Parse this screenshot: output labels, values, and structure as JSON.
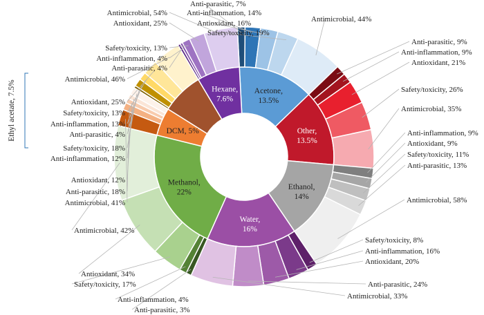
{
  "chart_data": {
    "type": "sunburst",
    "inner_ring": [
      {
        "name": "Acetone",
        "value": "13.5%",
        "weight": 13.5,
        "color": "#5b9bd5",
        "text_color": "#222222"
      },
      {
        "name": "Other",
        "value": "13.5%",
        "weight": 13.5,
        "color": "#c0192b",
        "text_color": "#ffffff"
      },
      {
        "name": "Ethanol",
        "value": "14%",
        "weight": 14,
        "color": "#a5a5a5",
        "text_color": "#222222"
      },
      {
        "name": "Water",
        "value": "16%",
        "weight": 16,
        "color": "#9b4fa5",
        "text_color": "#ffffff"
      },
      {
        "name": "Methanol",
        "value": "22%",
        "weight": 22,
        "color": "#70ad47",
        "text_color": "#222222"
      },
      {
        "name": "DCM",
        "value": "5%",
        "weight": 5,
        "color": "#ed7d31",
        "text_color": "#222222"
      },
      {
        "name": "Ethyl acetate",
        "value": "7.5%",
        "weight": 7.5,
        "color": "#a0522d",
        "text_color": "#222222"
      },
      {
        "name": "Hexane",
        "value": "7.6%",
        "weight": 7.6,
        "color": "#7030a0",
        "text_color": "#ffffff"
      }
    ],
    "outer_ring": {
      "Acetone": [
        {
          "label": "Anti-parasitic, 7%",
          "value": 7,
          "color": "#1f4e79"
        },
        {
          "label": "Anti-inflammation, 14%",
          "value": 14,
          "color": "#2e75b6"
        },
        {
          "label": "Antioxidant, 16%",
          "value": 16,
          "color": "#9dc3e6"
        },
        {
          "label": "Safety/toxicity, 19%",
          "value": 19,
          "color": "#bdd7ee"
        },
        {
          "label": "Antimicrobial, 44%",
          "value": 44,
          "color": "#deebf7"
        }
      ],
      "Other": [
        {
          "label": "Anti-parasitic, 9%",
          "value": 9,
          "color": "#7b0c14"
        },
        {
          "label": "Anti-inflammation, 9%",
          "value": 9,
          "color": "#a3141f"
        },
        {
          "label": "Antioxidant, 21%",
          "value": 21,
          "color": "#e8202e"
        },
        {
          "label": "Safety/toxicity, 26%",
          "value": 26,
          "color": "#ef5a63"
        },
        {
          "label": "Antimicrobial, 35%",
          "value": 35,
          "color": "#f6aab0"
        }
      ],
      "Ethanol": [
        {
          "label": "Anti-inflammation, 9%",
          "value": 9,
          "color": "#7f7f7f"
        },
        {
          "label": "Antioxidant, 9%",
          "value": 9,
          "color": "#a6a6a6"
        },
        {
          "label": "Safety/toxicity, 11%",
          "value": 11,
          "color": "#bfbfbf"
        },
        {
          "label": "Anti-parasitic, 13%",
          "value": 13,
          "color": "#d9d9d9"
        },
        {
          "label": "Antimicrobial, 58%",
          "value": 58,
          "color": "#efefef"
        }
      ],
      "Water": [
        {
          "label": "Safety/toxicity, 8%",
          "value": 8,
          "color": "#5e2069"
        },
        {
          "label": "Anti-inflammation, 16%",
          "value": 16,
          "color": "#7b3a8a"
        },
        {
          "label": "Antioxidant, 20%",
          "value": 20,
          "color": "#9d5aa8"
        },
        {
          "label": "Anti-parasitic, 24%",
          "value": 24,
          "color": "#c08cc8"
        },
        {
          "label": "Antimicrobial, 33%",
          "value": 33,
          "color": "#e0c2e3"
        }
      ],
      "Methanol": [
        {
          "label": "Anti-parasitic, 3%",
          "value": 3,
          "color": "#385723"
        },
        {
          "label": "Anti-inflammation, 4%",
          "value": 4,
          "color": "#548235"
        },
        {
          "label": "Safety/toxicity, 17%",
          "value": 17,
          "color": "#a9d18e"
        },
        {
          "label": "Antioxidant, 34%",
          "value": 34,
          "color": "#c5e0b4"
        },
        {
          "label": "Antimicrobial, 42%",
          "value": 42,
          "color": "#e2efda"
        }
      ],
      "DCM": [
        {
          "label": "Antimicrobial, 41%",
          "value": 41,
          "color": "#c55a11"
        },
        {
          "label": "Anti-parasitic, 18%",
          "value": 18,
          "color": "#f4b183"
        },
        {
          "label": "Antioxidant, 12%",
          "value": 12,
          "color": "#f8cbad"
        },
        {
          "label": "Anti-inflammation, 12%",
          "value": 12,
          "color": "#fbe5d6"
        },
        {
          "label": "Safety/toxicity, 18%",
          "value": 18,
          "color": "#fdf2ea"
        }
      ],
      "Ethyl acetate": [
        {
          "label": "Anti-parasitic, 4%",
          "value": 4,
          "color": "#7f6000"
        },
        {
          "label": "Anti-inflammation, 13%",
          "value": 13,
          "color": "#bf9000"
        },
        {
          "label": "Safety/toxicity, 13%",
          "value": 13,
          "color": "#ffd966"
        },
        {
          "label": "Antioxidant, 25%",
          "value": 25,
          "color": "#ffe699"
        },
        {
          "label": "Antimicrobial, 46%",
          "value": 46,
          "color": "#fff2cc"
        }
      ],
      "Hexane": [
        {
          "label": "Anti-parasitic, 4%",
          "value": 4,
          "color": "#5c2a85"
        },
        {
          "label": "Anti-inflammation, 4%",
          "value": 4,
          "color": "#7f4ba8"
        },
        {
          "label": "Safety/toxicity, 13%",
          "value": 13,
          "color": "#9e73c2"
        },
        {
          "label": "Antioxidant, 25%",
          "value": 25,
          "color": "#c1a5dc"
        },
        {
          "label": "Antimicrobial, 54%",
          "value": 54,
          "color": "#ddcdef"
        }
      ]
    },
    "side_annotation": {
      "text": "Ethyl acetate, 7.5%",
      "color": "#2e75b6"
    }
  }
}
